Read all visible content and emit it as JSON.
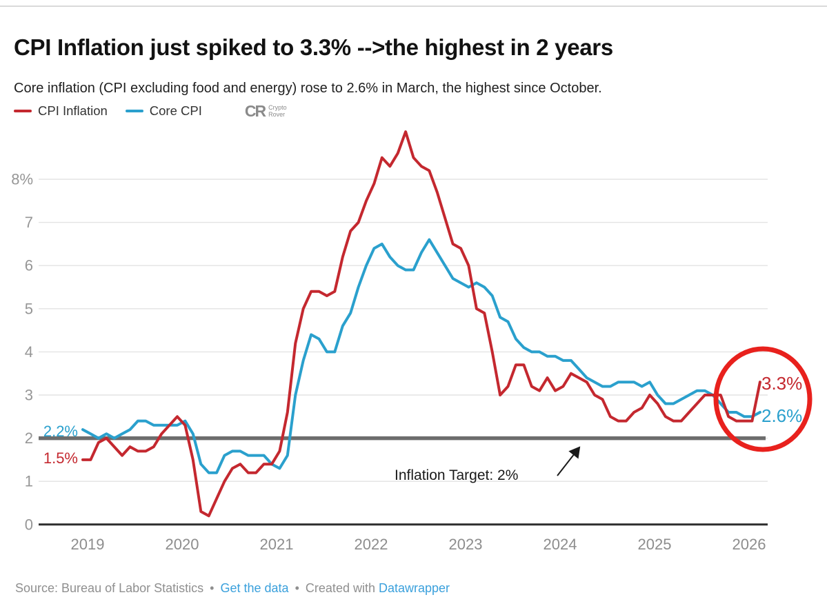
{
  "header": {
    "title": "CPI Inflation just spiked to 3.3% -->the highest in 2 years",
    "subtitle": "Core inflation (CPI excluding food and energy) rose to 2.6% in March, the highest since October."
  },
  "legend": {
    "items": [
      {
        "label": "CPI Inflation",
        "color": "#c4282f"
      },
      {
        "label": "Core CPI",
        "color": "#2aa0cd"
      }
    ],
    "logo": {
      "glyph": "CR",
      "line1": "Crypto",
      "line2": "Rover"
    }
  },
  "chart_data": {
    "type": "line",
    "title": "CPI Inflation just spiked to 3.3% -->the highest in 2 years",
    "x_unit": "month",
    "x_start": "2019-01",
    "x_end": "2026-03",
    "x_tick_labels": [
      "2019",
      "2020",
      "2021",
      "2022",
      "2023",
      "2024",
      "2025",
      "2026"
    ],
    "y_tick_values": [
      0,
      1,
      2,
      3,
      4,
      5,
      6,
      7,
      8
    ],
    "y_tick_labels": [
      "0",
      "1",
      "2",
      "3",
      "4",
      "5",
      "6",
      "7",
      "8%"
    ],
    "ylim": [
      0,
      9.3
    ],
    "grid": true,
    "legend_position": "top-left",
    "series": [
      {
        "name": "Core CPI",
        "color": "#2aa0cd",
        "values": [
          2.2,
          2.1,
          2.0,
          2.1,
          2.0,
          2.1,
          2.2,
          2.4,
          2.4,
          2.3,
          2.3,
          2.3,
          2.3,
          2.4,
          2.1,
          1.4,
          1.2,
          1.2,
          1.6,
          1.7,
          1.7,
          1.6,
          1.6,
          1.6,
          1.4,
          1.3,
          1.6,
          3.0,
          3.8,
          4.4,
          4.3,
          4.0,
          4.0,
          4.6,
          4.9,
          5.5,
          6.0,
          6.4,
          6.5,
          6.2,
          6.0,
          5.9,
          5.9,
          6.3,
          6.6,
          6.3,
          6.0,
          5.7,
          5.6,
          5.5,
          5.6,
          5.5,
          5.3,
          4.8,
          4.7,
          4.3,
          4.1,
          4.0,
          4.0,
          3.9,
          3.9,
          3.8,
          3.8,
          3.6,
          3.4,
          3.3,
          3.2,
          3.2,
          3.3,
          3.3,
          3.3,
          3.2,
          3.3,
          3.0,
          2.8,
          2.8,
          2.9,
          3.0,
          3.1,
          3.1,
          3.0,
          2.8,
          2.6,
          2.6,
          2.5,
          2.5,
          2.6
        ]
      },
      {
        "name": "CPI Inflation",
        "color": "#c4282f",
        "values": [
          1.5,
          1.5,
          1.9,
          2.0,
          1.8,
          1.6,
          1.8,
          1.7,
          1.7,
          1.8,
          2.1,
          2.3,
          2.5,
          2.3,
          1.5,
          0.3,
          0.2,
          0.6,
          1.0,
          1.3,
          1.4,
          1.2,
          1.2,
          1.4,
          1.4,
          1.7,
          2.6,
          4.2,
          5.0,
          5.4,
          5.4,
          5.3,
          5.4,
          6.2,
          6.8,
          7.0,
          7.5,
          7.9,
          8.5,
          8.3,
          8.6,
          9.1,
          8.5,
          8.3,
          8.2,
          7.7,
          7.1,
          6.5,
          6.4,
          6.0,
          5.0,
          4.9,
          4.0,
          3.0,
          3.2,
          3.7,
          3.7,
          3.2,
          3.1,
          3.4,
          3.1,
          3.2,
          3.5,
          3.4,
          3.3,
          3.0,
          2.9,
          2.5,
          2.4,
          2.4,
          2.6,
          2.7,
          3.0,
          2.8,
          2.5,
          2.4,
          2.4,
          2.6,
          2.8,
          3.0,
          3.0,
          3.0,
          2.5,
          2.4,
          2.4,
          2.4,
          3.3
        ]
      }
    ],
    "annotations": {
      "start_labels": [
        {
          "text": "2.2%",
          "color": "#2aa0cd"
        },
        {
          "text": "1.5%",
          "color": "#c4282f"
        }
      ],
      "end_labels": [
        {
          "text": "3.3%",
          "color": "#c4282f"
        },
        {
          "text": "2.6%",
          "color": "#2aa0cd"
        }
      ],
      "target_line": {
        "value": 2,
        "label": "Inflation Target: 2%",
        "color": "#6d6d6d"
      },
      "highlight_circle": {
        "color": "#e8211d"
      }
    }
  },
  "footer": {
    "source": "Source: Bureau of Labor Statistics",
    "bullet": "•",
    "get_data_label": "Get the data",
    "created_with": "Created with",
    "datawrapper_label": "Datawrapper"
  }
}
